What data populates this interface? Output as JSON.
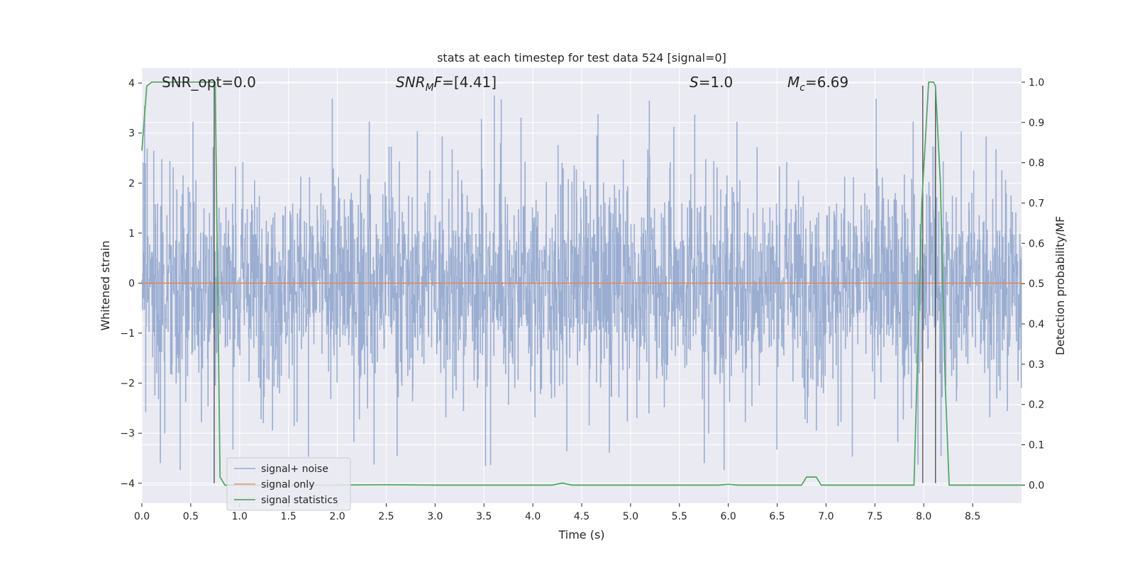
{
  "chart_data": {
    "type": "line",
    "title": "stats at each timestep for test data 524 [signal=0]",
    "xlabel": "Time (s)",
    "ylabel": "Whitened strain",
    "ylabel_right": "Detection probability/MF",
    "xlim": [
      0.0,
      9.0
    ],
    "ylim": [
      -4.4,
      4.3
    ],
    "ylim_right": [
      -0.045,
      1.035
    ],
    "x_ticks": [
      "0.0",
      "0.5",
      "1.0",
      "1.5",
      "2.0",
      "2.5",
      "3.0",
      "3.5",
      "4.0",
      "4.5",
      "5.0",
      "5.5",
      "6.0",
      "6.5",
      "7.0",
      "7.5",
      "8.0",
      "8.5"
    ],
    "y_ticks": [
      "−4",
      "−3",
      "−2",
      "−1",
      "0",
      "1",
      "2",
      "3",
      "4"
    ],
    "y_ticks_right": [
      "0.0",
      "0.1",
      "0.2",
      "0.3",
      "0.4",
      "0.5",
      "0.6",
      "0.7",
      "0.8",
      "0.9",
      "1.0"
    ],
    "annotations": [
      {
        "id": "snr_opt",
        "text": "SNR_opt=0.0"
      },
      {
        "id": "snr_mf",
        "text": "SNR_MF=[4.41]"
      },
      {
        "id": "s",
        "text": "S=1.0"
      },
      {
        "id": "mc",
        "text": "M_c=6.69"
      }
    ],
    "grid": true,
    "legend_position": "lower-left",
    "series": [
      {
        "name": "signal+ noise",
        "color": "#4c72b0",
        "kind": "noise",
        "description": "dense noise band spanning approximately -1.6 to 1.6 with spikes up to about 3.9 and down to about -4.0"
      },
      {
        "name": "signal only",
        "color": "#dd8452",
        "kind": "flat",
        "y": 0.0
      },
      {
        "name": "signal statistics",
        "color": "#55a868",
        "axis": "right",
        "x": [
          0.0,
          0.05,
          0.1,
          0.2,
          0.3,
          0.4,
          0.5,
          0.6,
          0.7,
          0.73,
          0.75,
          0.8,
          0.85,
          0.9,
          1.0,
          2.0,
          2.5,
          3.0,
          4.0,
          4.2,
          4.3,
          4.4,
          5.0,
          5.9,
          6.0,
          6.1,
          6.75,
          6.8,
          6.9,
          6.95,
          7.0,
          7.5,
          7.9,
          7.98,
          8.05,
          8.1,
          8.12,
          8.17,
          8.22,
          8.26,
          8.3,
          8.5,
          9.0
        ],
        "y": [
          0.83,
          0.99,
          1.0,
          1.0,
          1.0,
          1.0,
          1.0,
          1.0,
          1.0,
          1.0,
          1.0,
          0.02,
          0.0,
          0.0,
          0.0,
          0.0,
          0.001,
          0.0,
          0.0,
          0.0,
          0.005,
          0.0,
          0.0,
          0.0,
          0.002,
          0.0,
          0.0,
          0.02,
          0.02,
          0.0,
          0.0,
          0.0,
          0.0,
          0.7,
          1.0,
          1.0,
          0.99,
          0.75,
          0.25,
          0.0,
          0.0,
          0.0,
          0.0
        ]
      }
    ],
    "detection_markers": [
      {
        "x": 0.74,
        "y_bottom": -4.0,
        "y_top": 4.0
      },
      {
        "x": 7.99,
        "y_bottom": -4.0,
        "y_top": 3.95
      },
      {
        "x": 8.12,
        "y_bottom": -4.0,
        "y_top": 3.95
      }
    ],
    "colors": {
      "background": "#eaeaf2",
      "grid": "#ffffff",
      "noise": "#4c72b0",
      "signal": "#dd8452",
      "stats": "#55a868",
      "marker": "#555555"
    }
  }
}
